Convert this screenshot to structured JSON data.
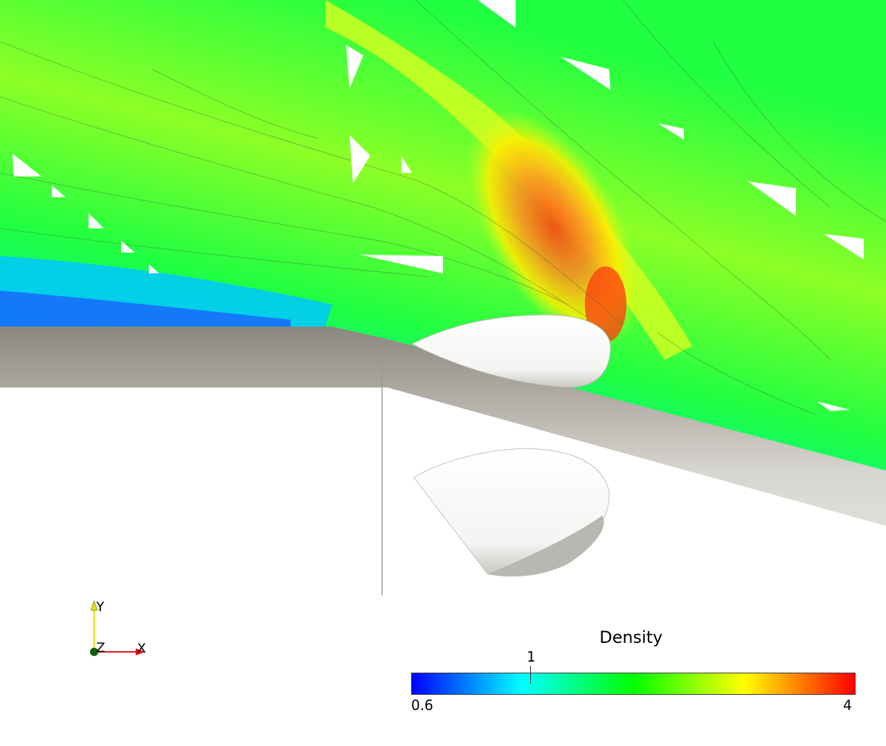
{
  "scalar_bar": {
    "title": "Density",
    "min_label": "0.6",
    "max_label": "4",
    "tick_label": "1",
    "colors": [
      "#0000ff",
      "#00ffff",
      "#00ff00",
      "#ffff00",
      "#ff0000"
    ]
  },
  "orientation_axes": {
    "y_label": "Y",
    "z_label": "Z",
    "x_label": "X",
    "colors": {
      "x": "#e01010",
      "y": "#e0e000",
      "z": "#106010"
    }
  }
}
